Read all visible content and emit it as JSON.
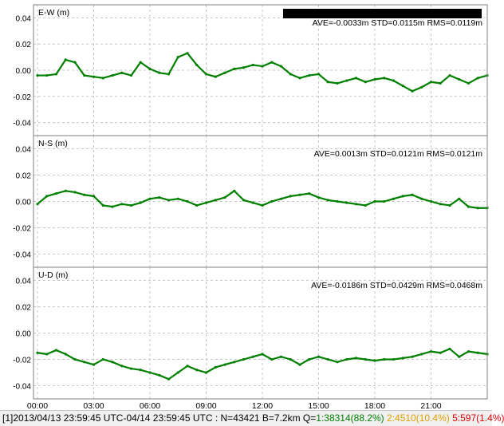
{
  "status_bar": {
    "solution": "[1]",
    "time_range": "2013/04/13 23:59:45 UTC-04/14 23:59:45 UTC",
    "counts": " : N=43421 B=7.2km Q=",
    "q1": "1:38314(88.2%)",
    "q2": "2:4510(10.4%)",
    "q5": "5:597(1.4%)",
    "colors": {
      "q1": "#008000",
      "q2": "#e0a000",
      "q5": "#e00000",
      "text": "#000000"
    }
  },
  "colors": {
    "points": "#008000",
    "spikes": "#c0c0c0",
    "grid": "#c8c8c8",
    "frame": "#808080"
  },
  "chart_data": [
    {
      "type": "scatter",
      "title": "E-W (m)",
      "stats": "AVE=-0.0033m STD=0.0115m RMS=0.0119m",
      "redacted_bar": true,
      "ylim": [
        -0.05,
        0.05
      ],
      "yticks": [
        "0.04",
        "0.02",
        "0.00",
        "-0.02",
        "-0.04"
      ],
      "yticks_values": [
        0.04,
        0.02,
        0.0,
        -0.02,
        -0.04
      ],
      "xlim": [
        0,
        24
      ],
      "grid": true,
      "x": [
        0,
        0.5,
        1,
        1.5,
        2,
        2.5,
        3,
        3.5,
        4,
        4.5,
        5,
        5.5,
        6,
        6.5,
        7,
        7.5,
        8,
        8.5,
        9,
        9.5,
        10,
        10.5,
        11,
        11.5,
        12,
        12.5,
        13,
        13.5,
        14,
        14.5,
        15,
        15.5,
        16,
        16.5,
        17,
        17.5,
        18,
        18.5,
        19,
        19.5,
        20,
        20.5,
        21,
        21.5,
        22,
        22.5,
        23,
        23.5,
        24
      ],
      "y": [
        -0.004,
        -0.004,
        -0.003,
        0.008,
        0.006,
        -0.004,
        -0.005,
        -0.006,
        -0.004,
        -0.002,
        -0.004,
        0.006,
        0.001,
        -0.002,
        -0.003,
        0.01,
        0.013,
        0.004,
        -0.003,
        -0.005,
        -0.002,
        0.001,
        0.002,
        0.004,
        0.003,
        0.006,
        0.003,
        -0.003,
        -0.006,
        -0.004,
        -0.003,
        -0.009,
        -0.01,
        -0.008,
        -0.006,
        -0.009,
        -0.007,
        -0.006,
        -0.008,
        -0.012,
        -0.016,
        -0.013,
        -0.009,
        -0.01,
        -0.004,
        -0.007,
        -0.01,
        -0.006,
        -0.004
      ]
    },
    {
      "type": "scatter",
      "title": "N-S (m)",
      "stats": "AVE=0.0013m STD=0.0121m RMS=0.0121m",
      "ylim": [
        -0.05,
        0.05
      ],
      "yticks": [
        "0.04",
        "0.02",
        "0.00",
        "-0.02",
        "-0.04"
      ],
      "yticks_values": [
        0.04,
        0.02,
        0.0,
        -0.02,
        -0.04
      ],
      "xlim": [
        0,
        24
      ],
      "grid": true,
      "x": [
        0,
        0.5,
        1,
        1.5,
        2,
        2.5,
        3,
        3.5,
        4,
        4.5,
        5,
        5.5,
        6,
        6.5,
        7,
        7.5,
        8,
        8.5,
        9,
        9.5,
        10,
        10.5,
        11,
        11.5,
        12,
        12.5,
        13,
        13.5,
        14,
        14.5,
        15,
        15.5,
        16,
        16.5,
        17,
        17.5,
        18,
        18.5,
        19,
        19.5,
        20,
        20.5,
        21,
        21.5,
        22,
        22.5,
        23,
        23.5,
        24
      ],
      "y": [
        -0.002,
        0.004,
        0.006,
        0.008,
        0.007,
        0.005,
        0.004,
        -0.003,
        -0.004,
        -0.002,
        -0.003,
        -0.001,
        0.002,
        0.003,
        0.001,
        0.002,
        0.0,
        -0.003,
        -0.001,
        0.001,
        0.003,
        0.008,
        0.001,
        -0.001,
        -0.003,
        0.0,
        0.002,
        0.004,
        0.005,
        0.006,
        0.003,
        0.001,
        0.0,
        -0.001,
        -0.002,
        -0.003,
        0.0,
        0.0,
        0.002,
        0.004,
        0.005,
        0.002,
        0.0,
        -0.002,
        -0.003,
        0.002,
        -0.004,
        -0.005,
        -0.005
      ]
    },
    {
      "type": "scatter",
      "title": "U-D (m)",
      "stats": "AVE=-0.0186m STD=0.0429m RMS=0.0468m",
      "ylim": [
        -0.05,
        0.05
      ],
      "yticks": [
        "0.04",
        "0.02",
        "0.00",
        "-0.02",
        "-0.04"
      ],
      "yticks_values": [
        0.04,
        0.02,
        0.0,
        -0.02,
        -0.04
      ],
      "xlim": [
        0,
        24
      ],
      "xticks": [
        "00:00",
        "03:00",
        "06:00",
        "09:00",
        "12:00",
        "15:00",
        "18:00",
        "21:00"
      ],
      "xticks_values": [
        0,
        3,
        6,
        9,
        12,
        15,
        18,
        21
      ],
      "grid": true,
      "x": [
        0,
        0.5,
        1,
        1.5,
        2,
        2.5,
        3,
        3.5,
        4,
        4.5,
        5,
        5.5,
        6,
        6.5,
        7,
        7.5,
        8,
        8.5,
        9,
        9.5,
        10,
        10.5,
        11,
        11.5,
        12,
        12.5,
        13,
        13.5,
        14,
        14.5,
        15,
        15.5,
        16,
        16.5,
        17,
        17.5,
        18,
        18.5,
        19,
        19.5,
        20,
        20.5,
        21,
        21.5,
        22,
        22.5,
        23,
        23.5,
        24
      ],
      "y": [
        -0.015,
        -0.016,
        -0.013,
        -0.016,
        -0.02,
        -0.022,
        -0.024,
        -0.02,
        -0.022,
        -0.025,
        -0.027,
        -0.028,
        -0.03,
        -0.032,
        -0.035,
        -0.03,
        -0.025,
        -0.028,
        -0.03,
        -0.026,
        -0.024,
        -0.022,
        -0.02,
        -0.018,
        -0.016,
        -0.02,
        -0.018,
        -0.02,
        -0.024,
        -0.02,
        -0.018,
        -0.02,
        -0.022,
        -0.02,
        -0.019,
        -0.02,
        -0.021,
        -0.02,
        -0.02,
        -0.019,
        -0.018,
        -0.016,
        -0.014,
        -0.015,
        -0.012,
        -0.018,
        -0.014,
        -0.015,
        -0.016
      ]
    }
  ]
}
